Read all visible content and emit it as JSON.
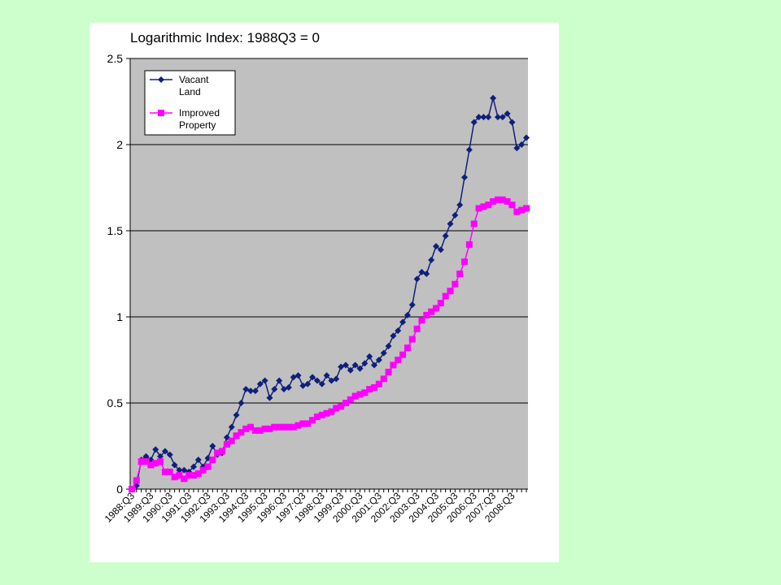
{
  "chart_data": {
    "type": "line",
    "title": "Logarithmic Index: 1988Q3 = 0",
    "ylim": [
      0,
      2.5
    ],
    "yticks": [
      "0",
      "0.5",
      "1",
      "1.5",
      "2",
      "2.5"
    ],
    "ytick_values": [
      0,
      0.5,
      1,
      1.5,
      2,
      2.5
    ],
    "xtick_labels": [
      "1988:Q3",
      "1989:Q3",
      "1990:Q3",
      "1991:Q3",
      "1992:Q3",
      "1993:Q3",
      "1994:Q3",
      "1995:Q3",
      "1996:Q3",
      "1997:Q3",
      "1998:Q3",
      "1999:Q3",
      "2000:Q3",
      "2001:Q3",
      "2002:Q3",
      "2003:Q3",
      "2004:Q3",
      "2005:Q3",
      "2006:Q3",
      "2007:Q3",
      "2008:Q3"
    ],
    "grid": true,
    "legend_position": "top-left",
    "colors": {
      "plot_bg": "#c0c0c0",
      "vacant": "#0f1f7a",
      "improved": "#ff00ff"
    },
    "series": [
      {
        "name": "Vacant Land",
        "marker": "diamond",
        "values": [
          0,
          0.02,
          0.17,
          0.19,
          0.17,
          0.23,
          0.19,
          0.22,
          0.2,
          0.14,
          0.11,
          0.11,
          0.1,
          0.13,
          0.17,
          0.13,
          0.18,
          0.25,
          0.2,
          0.21,
          0.3,
          0.36,
          0.43,
          0.5,
          0.58,
          0.57,
          0.57,
          0.61,
          0.63,
          0.53,
          0.58,
          0.63,
          0.58,
          0.59,
          0.65,
          0.66,
          0.6,
          0.61,
          0.65,
          0.63,
          0.61,
          0.66,
          0.63,
          0.64,
          0.71,
          0.72,
          0.69,
          0.72,
          0.7,
          0.73,
          0.77,
          0.72,
          0.75,
          0.79,
          0.83,
          0.89,
          0.92,
          0.97,
          1.01,
          1.07,
          1.22,
          1.26,
          1.25,
          1.33,
          1.41,
          1.39,
          1.47,
          1.54,
          1.59,
          1.65,
          1.81,
          1.97,
          2.13,
          2.16,
          2.16,
          2.16,
          2.27,
          2.16,
          2.16,
          2.18,
          2.13,
          1.98,
          2.0,
          2.04
        ]
      },
      {
        "name": "Improved Property",
        "marker": "square",
        "values": [
          0,
          0.05,
          0.16,
          0.16,
          0.14,
          0.15,
          0.16,
          0.1,
          0.1,
          0.07,
          0.08,
          0.06,
          0.08,
          0.08,
          0.09,
          0.11,
          0.13,
          0.17,
          0.21,
          0.22,
          0.26,
          0.28,
          0.31,
          0.33,
          0.35,
          0.36,
          0.34,
          0.34,
          0.35,
          0.35,
          0.36,
          0.36,
          0.36,
          0.36,
          0.36,
          0.37,
          0.38,
          0.38,
          0.4,
          0.42,
          0.43,
          0.44,
          0.45,
          0.47,
          0.48,
          0.5,
          0.52,
          0.54,
          0.55,
          0.56,
          0.58,
          0.59,
          0.61,
          0.64,
          0.68,
          0.72,
          0.75,
          0.78,
          0.82,
          0.87,
          0.93,
          0.98,
          1.01,
          1.03,
          1.05,
          1.08,
          1.12,
          1.15,
          1.19,
          1.25,
          1.32,
          1.42,
          1.54,
          1.63,
          1.64,
          1.65,
          1.67,
          1.68,
          1.68,
          1.67,
          1.65,
          1.61,
          1.62,
          1.63
        ]
      }
    ]
  },
  "legend": {
    "vacant_line1": "Vacant",
    "vacant_line2": "Land",
    "improved_line1": "Improved",
    "improved_line2": "Property"
  }
}
